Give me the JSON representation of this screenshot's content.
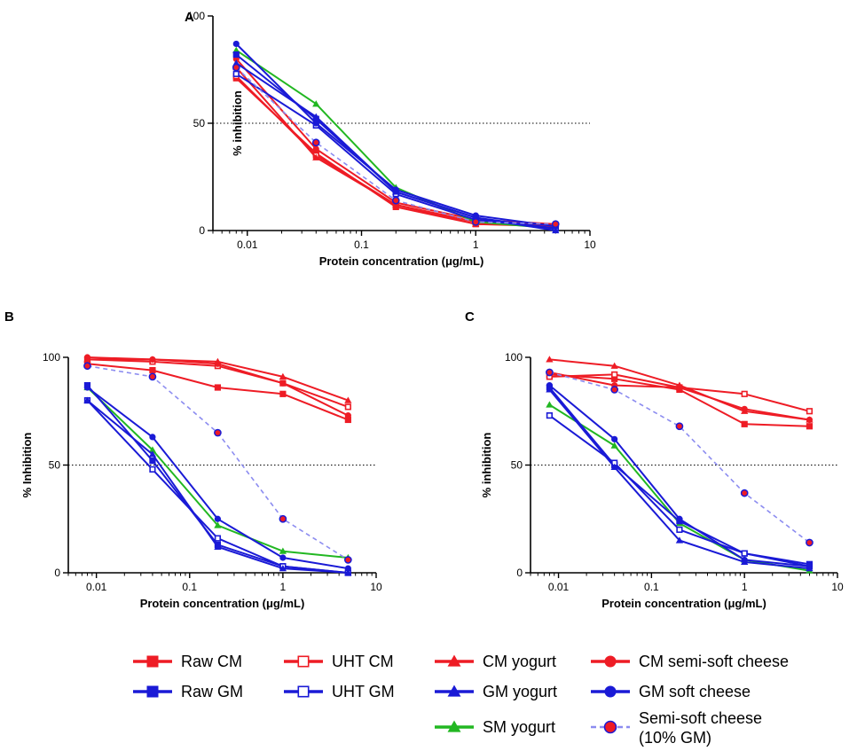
{
  "chart_data": [
    {
      "type": "line",
      "panel": "A",
      "x_scale": "log",
      "x": [
        0.008,
        0.04,
        0.2,
        1,
        5
      ],
      "xticks": [
        "0.01",
        "0.1",
        "1",
        "10"
      ],
      "yticks": [
        "0",
        "50",
        "100"
      ],
      "xlabel": "Protein concentration (μg/mL)",
      "ylabel": "% inhibition",
      "xlim": [
        0.005,
        10
      ],
      "ylim": [
        0,
        100
      ],
      "reference_line": 50,
      "series": [
        {
          "name": "Raw CM",
          "values": [
            71,
            36,
            11,
            3,
            2
          ]
        },
        {
          "name": "UHT CM",
          "values": [
            72,
            35,
            12,
            4,
            2
          ]
        },
        {
          "name": "CM yogurt",
          "values": [
            76,
            34,
            12,
            3,
            3
          ]
        },
        {
          "name": "CM semi-soft cheese",
          "values": [
            80,
            38,
            13,
            5,
            3
          ]
        },
        {
          "name": "Raw GM",
          "values": [
            82,
            52,
            18,
            6,
            1
          ]
        },
        {
          "name": "UHT GM",
          "values": [
            73,
            49,
            17,
            5,
            1
          ]
        },
        {
          "name": "GM yogurt",
          "values": [
            78,
            53,
            18,
            6,
            0
          ]
        },
        {
          "name": "GM soft cheese",
          "values": [
            87,
            50,
            19,
            7,
            2
          ]
        },
        {
          "name": "SM yogurt",
          "values": [
            84,
            59,
            20,
            4,
            1
          ]
        },
        {
          "name": "Semi-soft cheese (10% GM)",
          "values": [
            76,
            41,
            14,
            4,
            3
          ]
        }
      ]
    },
    {
      "type": "line",
      "panel": "B",
      "x_scale": "log",
      "x": [
        0.008,
        0.04,
        0.2,
        1,
        5
      ],
      "xticks": [
        "0.01",
        "0.1",
        "1",
        "10"
      ],
      "yticks": [
        "0",
        "50",
        "100"
      ],
      "xlabel": "Protein concentration (μg/mL)",
      "ylabel": "% Inhibition",
      "xlim": [
        0.005,
        10
      ],
      "ylim": [
        0,
        100
      ],
      "reference_line": 50,
      "series": [
        {
          "name": "Raw CM",
          "values": [
            97,
            94,
            86,
            83,
            71
          ]
        },
        {
          "name": "UHT CM",
          "values": [
            99,
            98,
            96,
            88,
            77
          ]
        },
        {
          "name": "CM yogurt",
          "values": [
            99,
            99,
            98,
            91,
            80
          ]
        },
        {
          "name": "CM semi-soft cheese",
          "values": [
            100,
            99,
            97,
            88,
            73
          ]
        },
        {
          "name": "Raw GM",
          "values": [
            87,
            52,
            13,
            3,
            0
          ]
        },
        {
          "name": "UHT GM",
          "values": [
            80,
            48,
            16,
            3,
            0
          ]
        },
        {
          "name": "GM yogurt",
          "values": [
            80,
            55,
            12,
            2,
            0
          ]
        },
        {
          "name": "GM soft cheese",
          "values": [
            86,
            63,
            25,
            7,
            2
          ]
        },
        {
          "name": "SM yogurt",
          "values": [
            86,
            57,
            22,
            10,
            7
          ]
        },
        {
          "name": "Semi-soft cheese (10% GM)",
          "values": [
            96,
            91,
            65,
            25,
            6
          ]
        }
      ]
    },
    {
      "type": "line",
      "panel": "C",
      "x_scale": "log",
      "x": [
        0.008,
        0.04,
        0.2,
        1,
        5
      ],
      "xticks": [
        "0.01",
        "0.1",
        "1",
        "10"
      ],
      "yticks": [
        "0",
        "50",
        "100"
      ],
      "xlabel": "Protein concentration (μg/mL)",
      "ylabel": "% inhibition",
      "xlim": [
        0.005,
        10
      ],
      "ylim": [
        0,
        100
      ],
      "reference_line": 50,
      "series": [
        {
          "name": "Raw CM",
          "values": [
            92,
            90,
            85,
            69,
            68
          ]
        },
        {
          "name": "UHT CM",
          "values": [
            91,
            92,
            86,
            83,
            75
          ]
        },
        {
          "name": "CM yogurt",
          "values": [
            99,
            96,
            87,
            75,
            71
          ]
        },
        {
          "name": "CM semi-soft cheese",
          "values": [
            93,
            87,
            86,
            76,
            71
          ]
        },
        {
          "name": "Raw GM",
          "values": [
            86,
            50,
            24,
            9,
            4
          ]
        },
        {
          "name": "UHT GM",
          "values": [
            73,
            51,
            20,
            9,
            3
          ]
        },
        {
          "name": "GM yogurt",
          "values": [
            85,
            49,
            15,
            5,
            2
          ]
        },
        {
          "name": "GM soft cheese",
          "values": [
            87,
            62,
            25,
            6,
            3
          ]
        },
        {
          "name": "SM yogurt",
          "values": [
            78,
            59,
            23,
            6,
            1
          ]
        },
        {
          "name": "Semi-soft cheese (10% GM)",
          "values": [
            93,
            85,
            68,
            37,
            14
          ]
        }
      ]
    }
  ],
  "legend": [
    {
      "name": "Raw CM",
      "label": "Raw CM",
      "color": "#ee1c25",
      "marker": "square-filled",
      "dashed": false
    },
    {
      "name": "Raw GM",
      "label": "Raw GM",
      "color": "#1a1ad6",
      "marker": "square-filled",
      "dashed": false
    },
    {
      "name": "UHT CM",
      "label": "UHT CM",
      "color": "#ee1c25",
      "marker": "square-open",
      "dashed": false
    },
    {
      "name": "UHT GM",
      "label": "UHT GM",
      "color": "#1a1ad6",
      "marker": "square-open",
      "dashed": false
    },
    {
      "name": "CM yogurt",
      "label": "CM yogurt",
      "color": "#ee1c25",
      "marker": "triangle",
      "dashed": false
    },
    {
      "name": "GM yogurt",
      "label": "GM yogurt",
      "color": "#1a1ad6",
      "marker": "triangle",
      "dashed": false
    },
    {
      "name": "SM yogurt",
      "label": "SM yogurt",
      "color": "#22b722",
      "marker": "triangle",
      "dashed": false
    },
    {
      "name": "CM semi-soft cheese",
      "label": "CM semi-soft cheese",
      "color": "#ee1c25",
      "marker": "circle",
      "dashed": false
    },
    {
      "name": "GM soft cheese",
      "label": "GM soft cheese",
      "color": "#1a1ad6",
      "marker": "circle",
      "dashed": false
    },
    {
      "name": "Semi-soft cheese (10% GM)",
      "label_lines": [
        "Semi-soft cheese",
        "(10% GM)"
      ],
      "color": "#8c8cf0",
      "marker": "circle-red-blue",
      "dashed": true
    }
  ],
  "colors": {
    "cm_red": "#ee1c25",
    "gm_blue": "#1a1ad6",
    "sm_green": "#22b722",
    "mix_lavender": "#8c8cf0",
    "reference_line": "#000000"
  }
}
